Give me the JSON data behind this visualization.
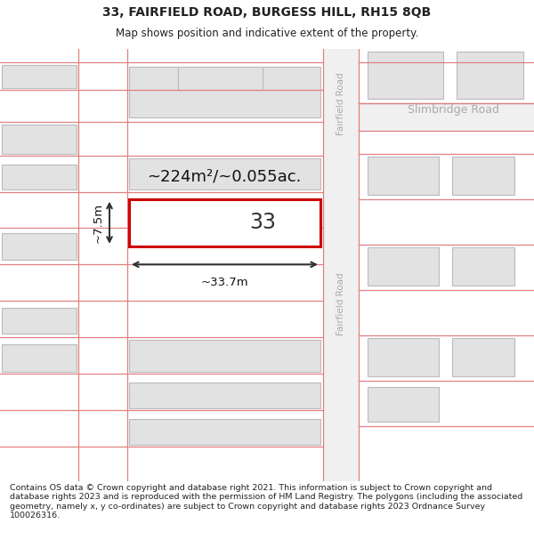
{
  "title": "33, FAIRFIELD ROAD, BURGESS HILL, RH15 8QB",
  "subtitle": "Map shows position and indicative extent of the property.",
  "footer": "Contains OS data © Crown copyright and database right 2021. This information is subject to Crown copyright and database rights 2023 and is reproduced with the permission of HM Land Registry. The polygons (including the associated geometry, namely x, y co-ordinates) are subject to Crown copyright and database rights 2023 Ordnance Survey 100026316.",
  "map_bg": "#f7f7f7",
  "road_line_color": "#e08080",
  "building_fill": "#e2e2e2",
  "building_stroke": "#bbbbbb",
  "highlight_fill": "#ffffff",
  "highlight_stroke": "#cc0000",
  "road_label_color": "#aaaaaa",
  "area_label": "~224m²/~0.055ac.",
  "width_label": "~33.7m",
  "height_label": "~7.5m",
  "number_label": "33",
  "fairfield_road_top": "Fairfield Road",
  "fairfield_road_bottom": "Fairfield Road",
  "slimbridge_road": "Slimbridge Road",
  "title_fontsize": 10,
  "subtitle_fontsize": 8.5,
  "footer_fontsize": 6.8
}
